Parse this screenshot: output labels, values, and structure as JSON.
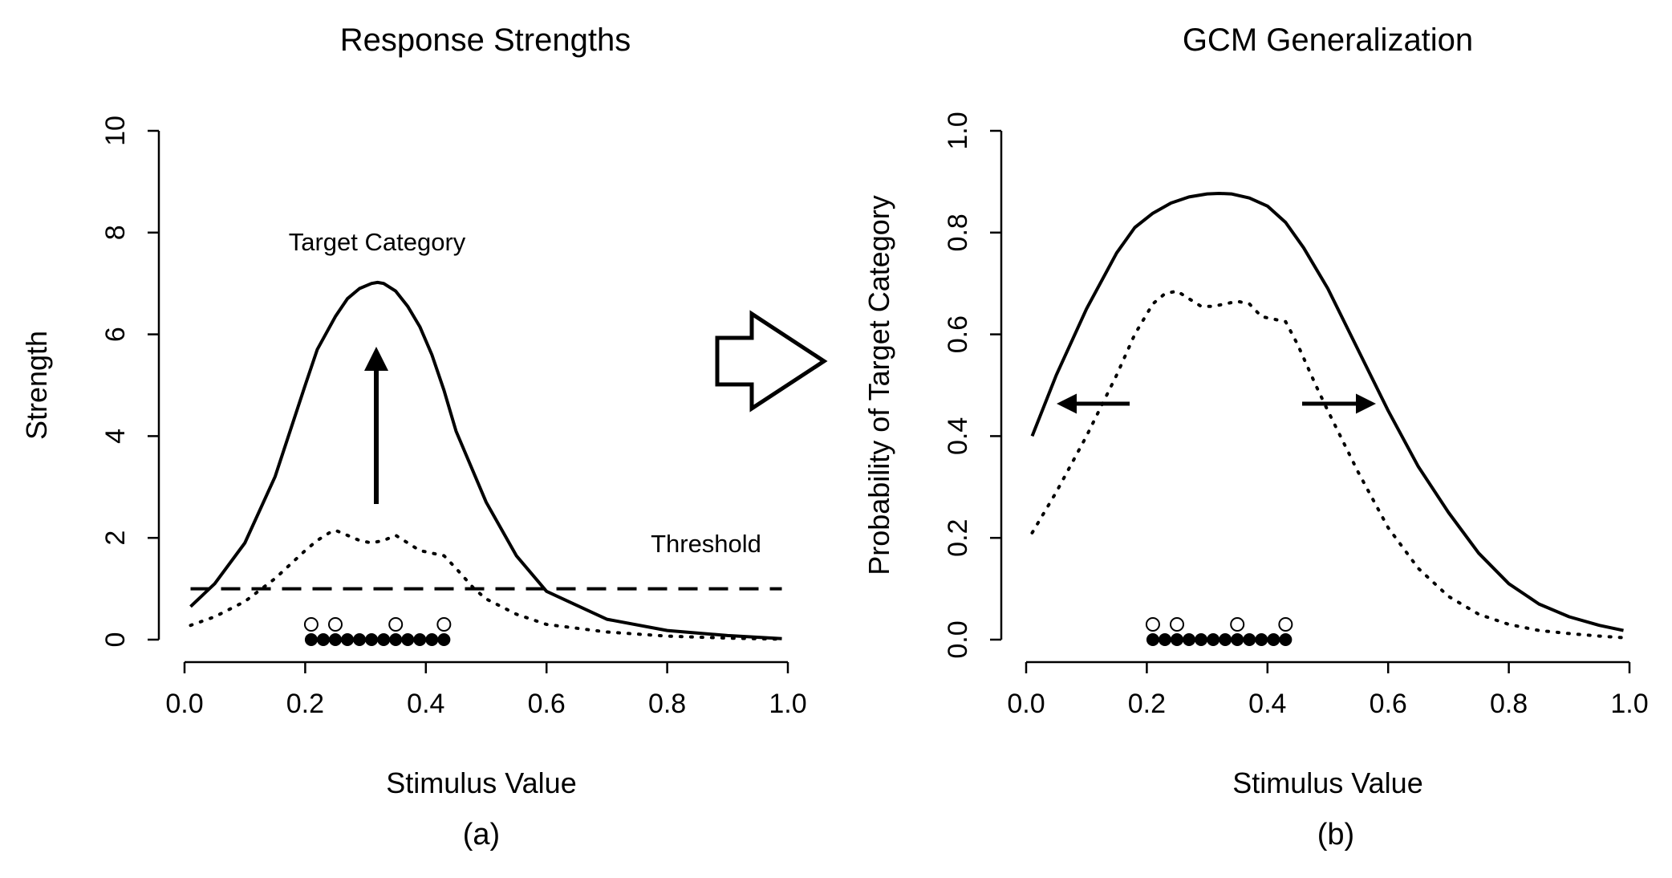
{
  "chart_data": [
    {
      "type": "line",
      "title": "Response Strengths",
      "xlabel": "Stimulus Value",
      "ylabel": "Strength",
      "caption": "(a)",
      "xlim": [
        0,
        1
      ],
      "ylim": [
        0,
        10
      ],
      "xticks": [
        "0.0",
        "0.2",
        "0.4",
        "0.6",
        "0.8",
        "1.0"
      ],
      "yticks": [
        "0",
        "2",
        "4",
        "6",
        "8",
        "10"
      ],
      "grid": false,
      "series": [
        {
          "style": "solid",
          "x": [
            0.01,
            0.05,
            0.1,
            0.15,
            0.2,
            0.22,
            0.25,
            0.27,
            0.29,
            0.31,
            0.32,
            0.33,
            0.35,
            0.37,
            0.39,
            0.41,
            0.43,
            0.45,
            0.5,
            0.55,
            0.6,
            0.7,
            0.8,
            0.9,
            0.99
          ],
          "y": [
            0.65,
            1.1,
            1.9,
            3.2,
            5.0,
            5.7,
            6.35,
            6.7,
            6.9,
            7.0,
            7.02,
            7.0,
            6.85,
            6.55,
            6.15,
            5.6,
            4.9,
            4.1,
            2.7,
            1.65,
            0.95,
            0.4,
            0.18,
            0.08,
            0.02
          ]
        },
        {
          "style": "dotted",
          "x": [
            0.01,
            0.05,
            0.1,
            0.15,
            0.2,
            0.22,
            0.24,
            0.25,
            0.27,
            0.29,
            0.31,
            0.33,
            0.35,
            0.37,
            0.39,
            0.41,
            0.43,
            0.45,
            0.48,
            0.5,
            0.55,
            0.6,
            0.7,
            0.8,
            0.9,
            0.99
          ],
          "y": [
            0.28,
            0.45,
            0.75,
            1.2,
            1.75,
            1.95,
            2.1,
            2.15,
            2.05,
            1.95,
            1.9,
            1.95,
            2.05,
            1.9,
            1.75,
            1.7,
            1.65,
            1.4,
            1.0,
            0.8,
            0.5,
            0.3,
            0.15,
            0.07,
            0.03,
            0.01
          ]
        },
        {
          "style": "dashed",
          "x": [
            0.01,
            0.99
          ],
          "y": [
            1.0,
            1.0
          ]
        }
      ],
      "filled_points": [
        0.21,
        0.23,
        0.25,
        0.27,
        0.29,
        0.31,
        0.33,
        0.35,
        0.37,
        0.39,
        0.41,
        0.43
      ],
      "open_points": [
        0.21,
        0.25,
        0.35,
        0.43
      ],
      "annotations": {
        "target": "Target Category",
        "threshold": "Threshold"
      }
    },
    {
      "type": "line",
      "title": "GCM Generalization",
      "xlabel": "Stimulus Value",
      "ylabel": "Probability of Target Category",
      "caption": "(b)",
      "xlim": [
        0,
        1
      ],
      "ylim": [
        0,
        1
      ],
      "xticks": [
        "0.0",
        "0.2",
        "0.4",
        "0.6",
        "0.8",
        "1.0"
      ],
      "yticks": [
        "0.0",
        "0.2",
        "0.4",
        "0.6",
        "0.8",
        "1.0"
      ],
      "grid": false,
      "series": [
        {
          "style": "solid",
          "x": [
            0.01,
            0.05,
            0.1,
            0.15,
            0.18,
            0.21,
            0.24,
            0.27,
            0.3,
            0.32,
            0.34,
            0.37,
            0.4,
            0.43,
            0.46,
            0.5,
            0.55,
            0.6,
            0.65,
            0.7,
            0.75,
            0.8,
            0.85,
            0.9,
            0.95,
            0.99
          ],
          "y": [
            0.4,
            0.52,
            0.65,
            0.76,
            0.81,
            0.838,
            0.858,
            0.87,
            0.876,
            0.877,
            0.876,
            0.868,
            0.852,
            0.82,
            0.77,
            0.69,
            0.57,
            0.45,
            0.34,
            0.25,
            0.17,
            0.11,
            0.07,
            0.045,
            0.028,
            0.018
          ]
        },
        {
          "style": "dotted",
          "x": [
            0.01,
            0.05,
            0.1,
            0.15,
            0.18,
            0.21,
            0.23,
            0.25,
            0.27,
            0.29,
            0.31,
            0.33,
            0.35,
            0.37,
            0.39,
            0.41,
            0.43,
            0.45,
            0.48,
            0.5,
            0.55,
            0.6,
            0.65,
            0.7,
            0.75,
            0.8,
            0.85,
            0.9,
            0.95,
            0.99
          ],
          "y": [
            0.21,
            0.29,
            0.4,
            0.52,
            0.6,
            0.66,
            0.68,
            0.685,
            0.67,
            0.655,
            0.655,
            0.66,
            0.665,
            0.66,
            0.635,
            0.63,
            0.625,
            0.58,
            0.5,
            0.45,
            0.33,
            0.22,
            0.14,
            0.085,
            0.05,
            0.03,
            0.018,
            0.012,
            0.007,
            0.004
          ]
        }
      ],
      "filled_points": [
        0.21,
        0.23,
        0.25,
        0.27,
        0.29,
        0.31,
        0.33,
        0.35,
        0.37,
        0.39,
        0.41,
        0.43
      ],
      "open_points": [
        0.21,
        0.25,
        0.35,
        0.43
      ]
    }
  ]
}
